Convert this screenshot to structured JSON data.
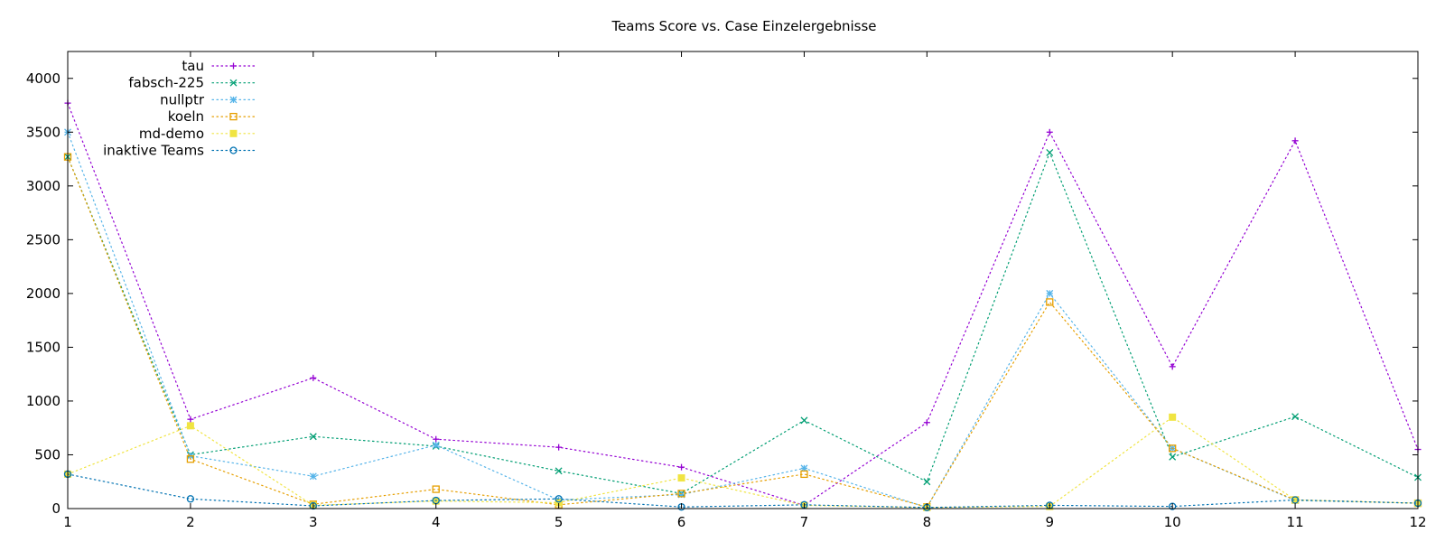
{
  "chart_data": {
    "type": "line",
    "title": "Teams Score vs. Case Einzelergebnisse",
    "xlabel": "",
    "ylabel": "",
    "x": [
      1,
      2,
      3,
      4,
      5,
      6,
      7,
      8,
      9,
      10,
      11,
      12
    ],
    "xlim": [
      1,
      12
    ],
    "ylim": [
      0,
      4250
    ],
    "x_ticks": [
      1,
      2,
      3,
      4,
      5,
      6,
      7,
      8,
      9,
      10,
      11,
      12
    ],
    "y_ticks": [
      0,
      500,
      1000,
      1500,
      2000,
      2500,
      3000,
      3500,
      4000
    ],
    "grid": false,
    "legend_position": "top-left",
    "series": [
      {
        "name": "tau",
        "color": "#9400d3",
        "marker": "plus",
        "values": [
          3770,
          830,
          1215,
          645,
          570,
          385,
          30,
          800,
          3500,
          1320,
          3420,
          550
        ]
      },
      {
        "name": "fabsch-225",
        "color": "#009e73",
        "marker": "cross",
        "values": [
          3270,
          500,
          670,
          580,
          350,
          140,
          820,
          250,
          3310,
          480,
          855,
          290
        ]
      },
      {
        "name": "nullptr",
        "color": "#56b4e9",
        "marker": "star",
        "values": [
          3500,
          490,
          300,
          590,
          80,
          130,
          375,
          10,
          2000,
          560,
          75,
          50
        ]
      },
      {
        "name": "koeln",
        "color": "#e69f00",
        "marker": "open-square",
        "values": [
          3270,
          460,
          40,
          180,
          35,
          140,
          320,
          15,
          1920,
          560,
          80,
          50
        ]
      },
      {
        "name": "md-demo",
        "color": "#f0e442",
        "marker": "filled-square",
        "values": [
          320,
          770,
          30,
          70,
          55,
          285,
          30,
          10,
          20,
          850,
          80,
          50
        ]
      },
      {
        "name": "inaktive Teams",
        "color": "#0072b2",
        "marker": "open-circle",
        "values": [
          320,
          90,
          25,
          75,
          90,
          15,
          35,
          10,
          30,
          20,
          80,
          50
        ]
      }
    ]
  }
}
